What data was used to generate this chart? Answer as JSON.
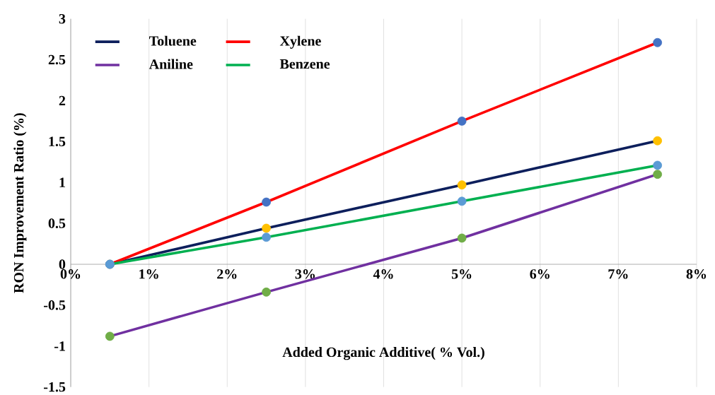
{
  "chart_data": {
    "type": "line",
    "xlabel": "Added Organic Additive( % Vol.)",
    "ylabel": "RON Improvement Ratio (%)",
    "x": [
      0.5,
      2.5,
      5,
      7.5
    ],
    "series": [
      {
        "name": "Toluene",
        "color": "#0d1f5c",
        "colors": [
          "#ffc000",
          "#ffc000",
          "#ffc000",
          "#ffc000"
        ],
        "values": [
          0,
          0.44,
          0.97,
          1.51
        ]
      },
      {
        "name": "Xylene",
        "color": "#ff0000",
        "colors": [
          "#4472c4",
          "#4472c4",
          "#4472c4",
          "#4472c4"
        ],
        "values": [
          0,
          0.76,
          1.75,
          2.71
        ]
      },
      {
        "name": "Aniline",
        "color": "#7030a0",
        "colors": [
          "#70ad47",
          "#70ad47",
          "#70ad47",
          "#70ad47"
        ],
        "values": [
          -0.88,
          -0.34,
          0.32,
          1.1
        ]
      },
      {
        "name": "Benzene",
        "color": "#00b050",
        "colors": [
          "#5b9bd5",
          "#5b9bd5",
          "#5b9bd5",
          "#5b9bd5"
        ],
        "values": [
          0,
          0.33,
          0.77,
          1.21
        ]
      }
    ],
    "xlim": [
      0,
      8
    ],
    "xticks": [
      {
        "value": 0,
        "label": "0%"
      },
      {
        "value": 1,
        "label": "1%"
      },
      {
        "value": 2,
        "label": "2%"
      },
      {
        "value": 3,
        "label": "3%"
      },
      {
        "value": 4,
        "label": "4%"
      },
      {
        "value": 5,
        "label": "5%"
      },
      {
        "value": 6,
        "label": "6%"
      },
      {
        "value": 7,
        "label": "7%"
      },
      {
        "value": 8,
        "label": "8%"
      }
    ],
    "ylim": [
      -1.5,
      3
    ],
    "yticks": [
      -1.5,
      -1,
      -0.5,
      0,
      0.5,
      1,
      1.5,
      2,
      2.5,
      3
    ],
    "grid": "x",
    "legend": "top left",
    "marker": "circle",
    "line_style": "solid"
  }
}
